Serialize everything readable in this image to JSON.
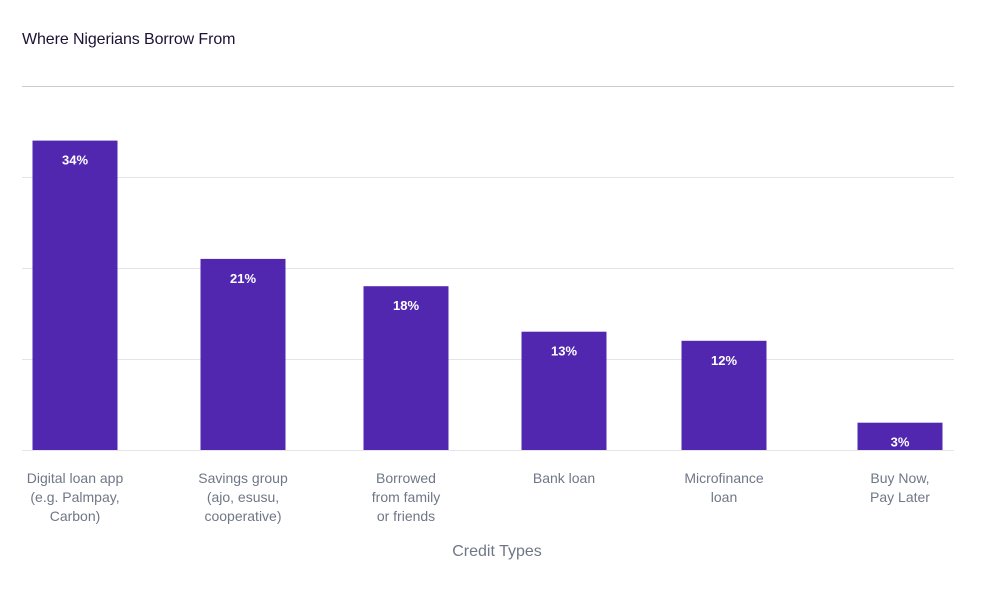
{
  "chart_data": {
    "type": "bar",
    "title": "Where Nigerians Borrow From",
    "xlabel": "Credit Types",
    "ylabel": "",
    "ylim": [
      0,
      40
    ],
    "grid": true,
    "categories": [
      [
        "Digital loan app",
        "(e.g. Palmpay,",
        "Carbon)"
      ],
      [
        "Savings group",
        "(ajo, esusu,",
        "cooperative)"
      ],
      [
        "Borrowed",
        "from family",
        "or friends"
      ],
      [
        "Bank loan"
      ],
      [
        "Microfinance",
        "loan"
      ],
      [
        "Buy Now,",
        "Pay Later"
      ]
    ],
    "values": [
      34,
      21,
      18,
      13,
      12,
      3
    ],
    "value_labels": [
      "34%",
      "21%",
      "18%",
      "13%",
      "12%",
      "3%"
    ],
    "colors": {
      "bar": "#5227b0",
      "grid": "#e2e4e9",
      "top_rule": "#c8cbd2",
      "tick_text": "#6f7787"
    }
  }
}
